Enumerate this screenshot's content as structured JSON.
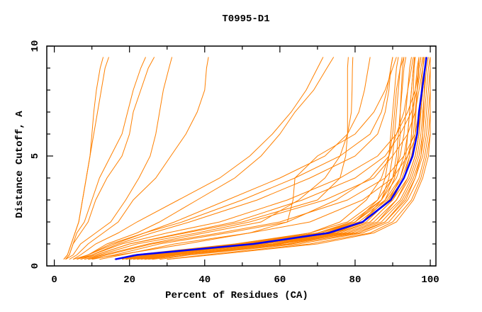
{
  "chart_data": {
    "type": "line",
    "title": "T0995-D1",
    "xlabel": "Percent of Residues (CA)",
    "ylabel": "Distance Cutoff, A",
    "xlim": [
      -2,
      101.5
    ],
    "ylim": [
      0,
      10
    ],
    "x_ticks": [
      0,
      20,
      40,
      60,
      80,
      100
    ],
    "y_ticks": [
      0,
      5,
      10
    ],
    "grid": false,
    "legend": "none",
    "colors": {
      "models": "#ff8000",
      "highlight": "#0000ff",
      "frame": "#000000"
    },
    "y_levels": [
      0.3,
      0.5,
      1,
      1.5,
      2,
      3,
      4,
      5,
      6,
      7,
      8,
      9,
      9.5
    ],
    "highlight": {
      "x": [
        16.2,
        22,
        53,
        73,
        82,
        89.5,
        93,
        95.3,
        96.5,
        97,
        97.8,
        98.6,
        99
      ]
    },
    "series": [
      {
        "x": [
          2.5,
          3.5,
          4.5,
          5.5,
          6.5,
          7.5,
          8.5,
          9.5,
          10.5,
          11.5,
          12.5,
          13.5,
          14.5
        ]
      },
      {
        "x": [
          2.5,
          3.5,
          4.5,
          5.5,
          6.5,
          7.5,
          8.5,
          9.5,
          10,
          10.5,
          11.2,
          12.2,
          13
        ]
      },
      {
        "x": [
          3,
          4,
          5,
          7,
          9,
          11,
          14,
          18,
          20,
          21,
          23,
          25,
          26.6
        ]
      },
      {
        "x": [
          3,
          4,
          5,
          6,
          8,
          10,
          12,
          15,
          18,
          19.5,
          21,
          23,
          24.3
        ]
      },
      {
        "x": [
          3,
          5,
          7,
          11,
          15,
          19,
          22.5,
          25.5,
          27,
          28,
          29,
          30.5,
          31.3
        ]
      },
      {
        "x": [
          4,
          6,
          9,
          13,
          17,
          21,
          27,
          31,
          35,
          38,
          40,
          40.5,
          41
        ]
      },
      {
        "x": [
          5,
          7,
          11,
          17,
          22,
          33,
          44,
          52,
          58,
          63,
          67,
          70,
          71.5
        ]
      },
      {
        "x": [
          6,
          9,
          14,
          22,
          28,
          38,
          48,
          55,
          60,
          64,
          69,
          72.5,
          74.3
        ]
      },
      {
        "x": [
          7,
          11,
          20,
          35,
          50,
          70,
          76,
          77.5,
          78,
          78,
          78,
          78,
          78.2
        ]
      },
      {
        "x": [
          8,
          13,
          25,
          40,
          55,
          65,
          72,
          76,
          78,
          79,
          79.2,
          79.3,
          79.4
        ]
      },
      {
        "x": [
          9,
          17,
          35,
          52,
          62,
          63.5,
          64,
          70,
          80,
          85,
          88,
          90,
          91
        ]
      },
      {
        "x": [
          5,
          9,
          16,
          24,
          32,
          46,
          60,
          72,
          78,
          81,
          82.5,
          83.5,
          84
        ]
      },
      {
        "x": [
          18,
          24,
          55,
          75,
          84,
          90,
          94,
          96,
          97,
          97.5,
          98,
          98.5,
          99
        ]
      },
      {
        "x": [
          20,
          27,
          58,
          77,
          85,
          91,
          94.5,
          96.5,
          97.5,
          98,
          98.5,
          99,
          99.5
        ]
      },
      {
        "x": [
          22,
          30,
          60,
          78,
          86,
          92,
          95,
          97,
          98,
          98.5,
          99,
          99.5,
          100
        ]
      },
      {
        "x": [
          25,
          33,
          62,
          79,
          87,
          92.5,
          95.5,
          97.5,
          98.5,
          99,
          99.5,
          100,
          100
        ]
      },
      {
        "x": [
          17,
          22,
          50,
          70,
          80,
          88,
          92,
          94,
          95.5,
          96,
          96.5,
          97,
          97.5
        ]
      },
      {
        "x": [
          19,
          25,
          52,
          72,
          81,
          88.5,
          92.5,
          94.5,
          95,
          95.5,
          96,
          96.5,
          97
        ]
      },
      {
        "x": [
          21,
          28,
          54,
          74,
          83,
          89,
          93,
          95,
          96,
          96.2,
          96.5,
          96.8,
          97
        ]
      },
      {
        "x": [
          24,
          32,
          60,
          80,
          88,
          93.5,
          96,
          98,
          99,
          99.5,
          100,
          100,
          100
        ]
      },
      {
        "x": [
          28,
          36,
          65,
          82,
          89,
          94,
          97,
          98.5,
          99.5,
          100,
          100,
          100,
          100
        ]
      },
      {
        "x": [
          30,
          40,
          68,
          84,
          90,
          95,
          97.5,
          99,
          100,
          100,
          100,
          100,
          100
        ]
      },
      {
        "x": [
          16,
          21,
          48,
          68,
          78,
          86,
          90,
          92,
          93,
          93.5,
          94,
          94.5,
          95
        ]
      },
      {
        "x": [
          18,
          23,
          49,
          70,
          79,
          87,
          91,
          93,
          94,
          94.5,
          95,
          95.5,
          96
        ]
      },
      {
        "x": [
          20,
          26,
          52,
          73,
          82,
          89,
          92,
          93.5,
          94,
          94.5,
          95,
          95.5,
          95.8
        ]
      },
      {
        "x": [
          22,
          29,
          56,
          76,
          84,
          90,
          93,
          94.5,
          95,
          95.2,
          95.5,
          95.7,
          96
        ]
      },
      {
        "x": [
          23,
          31,
          59,
          78,
          86,
          91,
          94,
          96,
          97,
          97.3,
          97.6,
          98,
          98.2
        ]
      },
      {
        "x": [
          26,
          35,
          63,
          81,
          88,
          93,
          96,
          97.5,
          98,
          98.2,
          98.4,
          98.6,
          98.8
        ]
      },
      {
        "x": [
          18,
          24,
          51,
          71,
          80,
          87,
          90,
          91,
          91.5,
          92,
          92.5,
          93,
          93.5
        ]
      },
      {
        "x": [
          20,
          27,
          55,
          74,
          82,
          88,
          90.5,
          91.5,
          92,
          92,
          92.3,
          92.6,
          93
        ]
      },
      {
        "x": [
          21,
          28,
          53,
          72,
          80,
          86,
          88,
          89,
          89.5,
          90,
          90.5,
          91,
          91.5
        ]
      },
      {
        "x": [
          24,
          33,
          58,
          75,
          82,
          87,
          89,
          90,
          90.5,
          91,
          91.5,
          92,
          92.5
        ]
      },
      {
        "x": [
          30,
          42,
          70,
          85,
          91,
          95.5,
          98,
          99.5,
          100,
          100,
          100,
          100,
          100
        ]
      },
      {
        "x": [
          19,
          26,
          50,
          68,
          76,
          83,
          87,
          89,
          90,
          90.5,
          91,
          92,
          93
        ]
      },
      {
        "x": [
          8,
          12,
          22,
          38,
          52,
          72,
          85,
          90,
          94,
          96,
          97,
          98,
          98.5
        ]
      },
      {
        "x": [
          6,
          10,
          18,
          30,
          44,
          62,
          76,
          86,
          91,
          94,
          96,
          97,
          97.5
        ]
      },
      {
        "x": [
          7,
          11,
          20,
          34,
          48,
          66,
          80,
          88,
          92,
          95,
          96.5,
          97.5,
          98
        ]
      },
      {
        "x": [
          9,
          14,
          26,
          44,
          60,
          78,
          88,
          93,
          96,
          97,
          98,
          98.5,
          99
        ]
      },
      {
        "x": [
          12,
          18,
          32,
          52,
          68,
          82,
          90,
          94,
          96.5,
          97.5,
          98,
          98.5,
          99
        ]
      },
      {
        "x": [
          10,
          16,
          28,
          46,
          62,
          75,
          84,
          89,
          91,
          93,
          94,
          95,
          95.5
        ]
      },
      {
        "x": [
          7,
          10,
          17,
          26,
          36,
          54,
          68,
          80,
          86,
          88,
          89,
          89.5,
          90
        ]
      },
      {
        "x": [
          6,
          9,
          15,
          24,
          34,
          50,
          64,
          76,
          84,
          87,
          88.5,
          89.5,
          90
        ]
      }
    ]
  }
}
